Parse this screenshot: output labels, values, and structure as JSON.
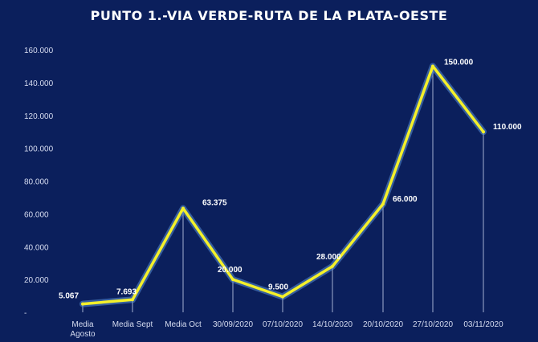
{
  "colors": {
    "background": "#0b1f5c",
    "line": "#f4f02a",
    "line_glow": "#5a8fd6",
    "drop_line": "#c9d3ec",
    "text": "#ffffff"
  },
  "chart_data": {
    "type": "line",
    "title": "PUNTO 1.-VIA VERDE-RUTA DE LA PLATA-OESTE",
    "categories": [
      "Media\nAgosto",
      "Media Sept",
      "Media Oct",
      "30/09/2020",
      "07/10/2020",
      "14/10/2020",
      "20/10/2020",
      "27/10/2020",
      "03/11/2020"
    ],
    "values": [
      5067,
      7693,
      63375,
      20000,
      9500,
      28000,
      66000,
      150000,
      110000
    ],
    "data_labels": [
      "5.067",
      "7.693",
      "63.375",
      "20.000",
      "9.500",
      "28.000",
      "66.000",
      "150.000",
      "110.000"
    ],
    "y_ticks": [
      0,
      20000,
      40000,
      60000,
      80000,
      100000,
      120000,
      140000,
      160000
    ],
    "y_tick_labels": [
      "-",
      "20.000",
      "40.000",
      "60.000",
      "80.000",
      "100.000",
      "120.000",
      "140.000",
      "160.000"
    ],
    "ylim": [
      0,
      160000
    ],
    "grid": false,
    "legend": "none",
    "xlabel": "",
    "ylabel": ""
  }
}
